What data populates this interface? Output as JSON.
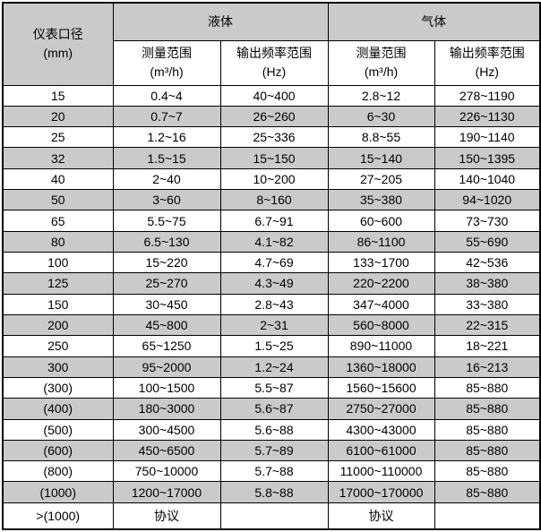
{
  "colors": {
    "header_bg": "#cacaca",
    "stripe_bg": "#cacaca",
    "row_bg": "#ffffff",
    "border": "#000000",
    "text": "#000000"
  },
  "table": {
    "diameter_header": {
      "line1": "仪表口径",
      "line2": "(mm)"
    },
    "groups": [
      {
        "label": "液体"
      },
      {
        "label": "气体"
      }
    ],
    "subheaders": {
      "measure_label": "测量范围",
      "measure_unit": "(m³/h)",
      "freq_label": "输出频率范围",
      "freq_unit": "(Hz)"
    },
    "rows": [
      {
        "diameter": "15",
        "liquid_measure": "0.4~4",
        "liquid_freq": "40~400",
        "gas_measure": "2.8~12",
        "gas_freq": "278~1190"
      },
      {
        "diameter": "20",
        "liquid_measure": "0.7~7",
        "liquid_freq": "26~260",
        "gas_measure": "6~30",
        "gas_freq": "226~1130"
      },
      {
        "diameter": "25",
        "liquid_measure": "1.2~16",
        "liquid_freq": "25~336",
        "gas_measure": "8.8~55",
        "gas_freq": "190~1140"
      },
      {
        "diameter": "32",
        "liquid_measure": "1.5~15",
        "liquid_freq": "15~150",
        "gas_measure": "15~140",
        "gas_freq": "150~1395"
      },
      {
        "diameter": "40",
        "liquid_measure": "2~40",
        "liquid_freq": "10~200",
        "gas_measure": "27~205",
        "gas_freq": "140~1040"
      },
      {
        "diameter": "50",
        "liquid_measure": "3~60",
        "liquid_freq": "8~160",
        "gas_measure": "35~380",
        "gas_freq": "94~1020"
      },
      {
        "diameter": "65",
        "liquid_measure": "5.5~75",
        "liquid_freq": "6.7~91",
        "gas_measure": "60~600",
        "gas_freq": "73~730"
      },
      {
        "diameter": "80",
        "liquid_measure": "6.5~130",
        "liquid_freq": "4.1~82",
        "gas_measure": "86~1100",
        "gas_freq": "55~690"
      },
      {
        "diameter": "100",
        "liquid_measure": "15~220",
        "liquid_freq": "4.7~69",
        "gas_measure": "133~1700",
        "gas_freq": "42~536"
      },
      {
        "diameter": "125",
        "liquid_measure": "25~270",
        "liquid_freq": "4.3~49",
        "gas_measure": "220~2200",
        "gas_freq": "38~380"
      },
      {
        "diameter": "150",
        "liquid_measure": "30~450",
        "liquid_freq": "2.8~43",
        "gas_measure": "347~4000",
        "gas_freq": "33~380"
      },
      {
        "diameter": "200",
        "liquid_measure": "45~800",
        "liquid_freq": "2~31",
        "gas_measure": "560~8000",
        "gas_freq": "22~315"
      },
      {
        "diameter": "250",
        "liquid_measure": "65~1250",
        "liquid_freq": "1.5~25",
        "gas_measure": "890~11000",
        "gas_freq": "18~221"
      },
      {
        "diameter": "300",
        "liquid_measure": "95~2000",
        "liquid_freq": "1.2~24",
        "gas_measure": "1360~18000",
        "gas_freq": "16~213"
      },
      {
        "diameter": "(300)",
        "liquid_measure": "100~1500",
        "liquid_freq": "5.5~87",
        "gas_measure": "1560~15600",
        "gas_freq": "85~880"
      },
      {
        "diameter": "(400)",
        "liquid_measure": "180~3000",
        "liquid_freq": "5.6~87",
        "gas_measure": "2750~27000",
        "gas_freq": "85~880"
      },
      {
        "diameter": "(500)",
        "liquid_measure": "300~4500",
        "liquid_freq": "5.6~88",
        "gas_measure": "4300~43000",
        "gas_freq": "85~880"
      },
      {
        "diameter": "(600)",
        "liquid_measure": "450~6500",
        "liquid_freq": "5.7~89",
        "gas_measure": "6100~61000",
        "gas_freq": "85~880"
      },
      {
        "diameter": "(800)",
        "liquid_measure": "750~10000",
        "liquid_freq": "5.7~88",
        "gas_measure": "11000~110000",
        "gas_freq": "85~880"
      },
      {
        "diameter": "(1000)",
        "liquid_measure": "1200~17000",
        "liquid_freq": "5.8~88",
        "gas_measure": "17000~170000",
        "gas_freq": "85~880"
      },
      {
        "diameter": ">(1000)",
        "liquid_measure": "协议",
        "liquid_freq": "",
        "gas_measure": "协议",
        "gas_freq": ""
      }
    ]
  }
}
